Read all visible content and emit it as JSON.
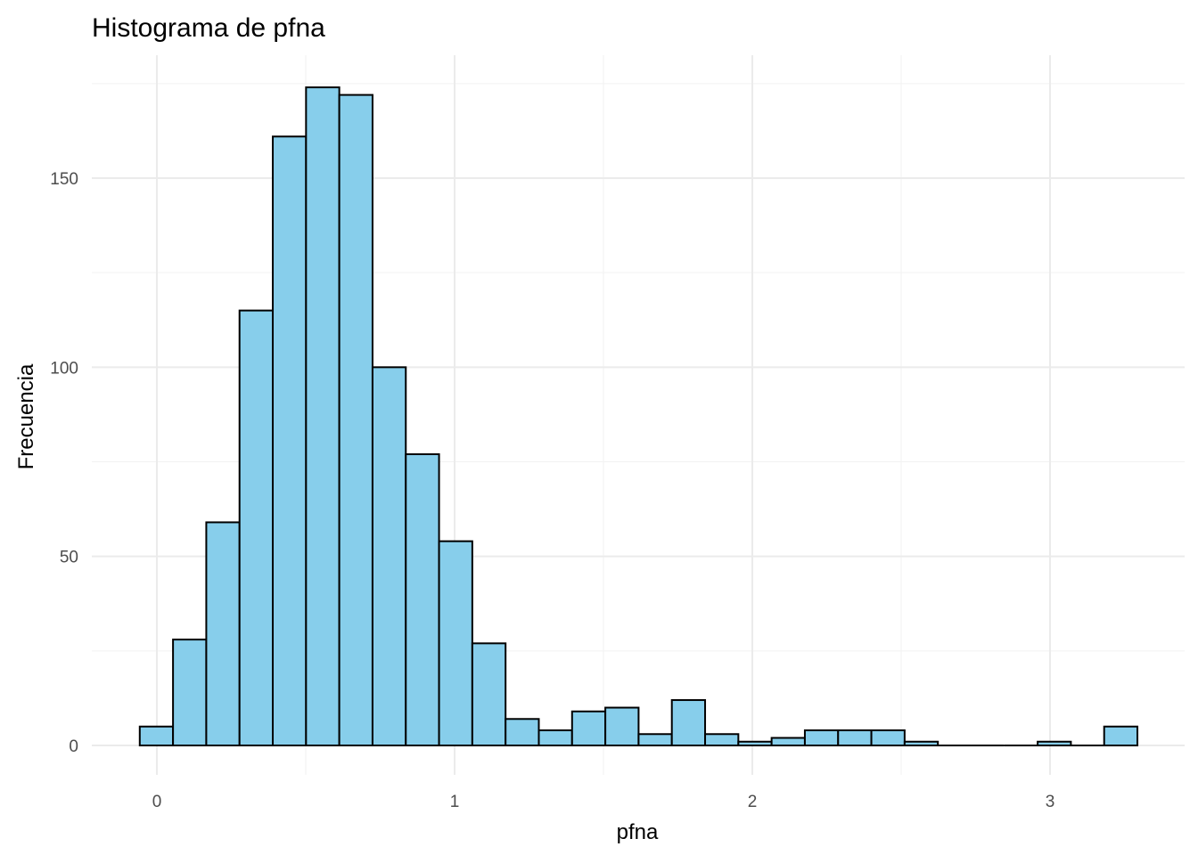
{
  "chart_data": {
    "type": "bar",
    "title": "Histograma de pfna",
    "xlabel": "pfna",
    "ylabel": "Frecuencia",
    "x_ticks": [
      0,
      1,
      2,
      3
    ],
    "y_ticks": [
      0,
      50,
      100,
      150
    ],
    "xlim": [
      -0.17,
      3.39
    ],
    "ylim": [
      -8,
      180
    ],
    "bin_width": 0.1117,
    "bin_start": -0.0575,
    "counts": [
      5,
      28,
      59,
      115,
      161,
      174,
      172,
      100,
      77,
      54,
      27,
      7,
      4,
      9,
      10,
      3,
      12,
      3,
      1,
      2,
      4,
      4,
      4,
      1,
      0,
      0,
      0,
      1,
      0,
      5
    ],
    "bar_fill": "#87ceeb",
    "bar_outline": "#000000",
    "grid": true,
    "legend": "none"
  }
}
